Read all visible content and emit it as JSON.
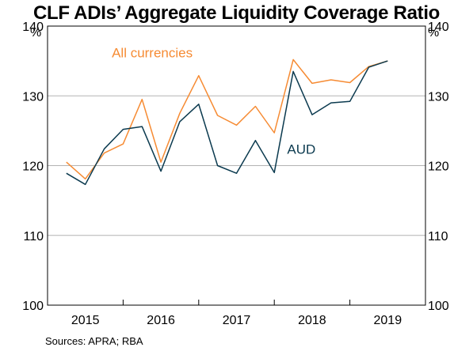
{
  "title": "CLF ADIs’ Aggregate Liquidity Coverage Ratio",
  "source": "Sources:   APRA; RBA",
  "chart_data": {
    "type": "line",
    "title": "CLF ADIs’ Aggregate Liquidity Coverage Ratio",
    "ylabel_left": "%",
    "ylabel_right": "%",
    "ylim": [
      100,
      140
    ],
    "yticks": [
      100,
      110,
      120,
      130,
      140
    ],
    "xlim": [
      2014.5,
      2019.5
    ],
    "xticks": [
      {
        "label": "2015",
        "pos": 2015
      },
      {
        "label": "2016",
        "pos": 2016
      },
      {
        "label": "2017",
        "pos": 2017
      },
      {
        "label": "2018",
        "pos": 2018
      },
      {
        "label": "2019",
        "pos": 2019
      }
    ],
    "year_boundaries": [
      2015.5,
      2016.5,
      2017.5,
      2018.5
    ],
    "grid": true,
    "colors": {
      "all": "#F68B33",
      "aud": "#0B3A4F",
      "grid": "#b3b3b3"
    },
    "series": [
      {
        "name": "All currencies",
        "key": "all",
        "x": [
          2014.75,
          2015.0,
          2015.25,
          2015.5,
          2015.75,
          2016.0,
          2016.25,
          2016.5,
          2016.75,
          2017.0,
          2017.25,
          2017.5,
          2017.75,
          2018.0,
          2018.25,
          2018.5,
          2018.75,
          2019.0
        ],
        "values": [
          120.5,
          118.1,
          121.8,
          123.1,
          129.5,
          120.5,
          127.5,
          132.9,
          127.2,
          125.8,
          128.5,
          124.7,
          135.2,
          131.8,
          132.3,
          131.9,
          134.2,
          135.0
        ]
      },
      {
        "name": "AUD",
        "key": "aud",
        "x": [
          2014.75,
          2015.0,
          2015.25,
          2015.5,
          2015.75,
          2016.0,
          2016.25,
          2016.5,
          2016.75,
          2017.0,
          2017.25,
          2017.5,
          2017.75,
          2018.0,
          2018.25,
          2018.5,
          2018.75,
          2019.0
        ],
        "values": [
          118.9,
          117.3,
          122.4,
          125.2,
          125.6,
          119.2,
          126.3,
          128.8,
          120.0,
          118.9,
          123.6,
          119.0,
          133.5,
          127.3,
          129.0,
          129.2,
          134.1,
          135.0
        ]
      }
    ]
  }
}
